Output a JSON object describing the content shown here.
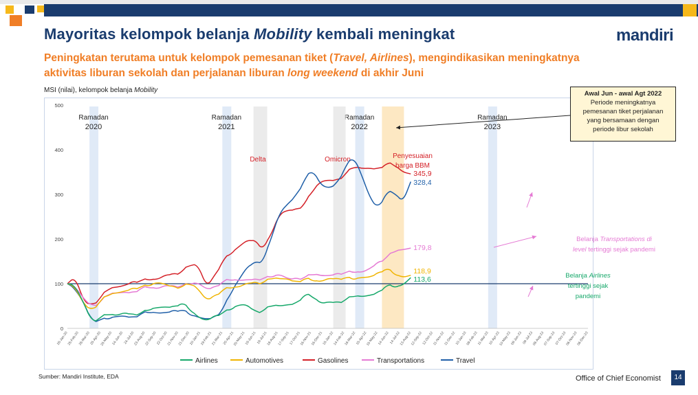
{
  "header": {
    "title_prefix": "Mayoritas kelompok belanja ",
    "title_em": "Mobility",
    "title_suffix": " kembali meningkat",
    "subtitle_a": "Peningkatan terutama untuk kelompok pemesanan tiket (",
    "subtitle_em1": "Travel, Airlines",
    "subtitle_b": "), mengindikasikan meningkatnya aktivitas liburan sekolah dan perjalanan liburan ",
    "subtitle_em2": "long weekend",
    "subtitle_c": " di akhir Juni",
    "logo": "mandiri"
  },
  "colors": {
    "navy": "#1a3c6e",
    "orange": "#f07e26",
    "airlines": "#16a86a",
    "automotives": "#f0b400",
    "gasolines": "#d42027",
    "transportations": "#e57ad4",
    "travel": "#1f5fa8"
  },
  "callout": {
    "title": "Awal Jun - awal Agt 2022",
    "lines": [
      "Periode meningkatnya",
      "pemesanan tiket perjalanan",
      "yang bersamaan dengan",
      "periode libur sekolah"
    ]
  },
  "footer": {
    "source": "Sumber: Mandiri Institute, EDA",
    "office": "Office of Chief Economist",
    "page": "14"
  },
  "chart_data": {
    "type": "line",
    "ylabel_prefix": "MSI (nilai), kelompok belanja ",
    "ylabel_em": "Mobility",
    "ylim": [
      0,
      500
    ],
    "yticks": [
      0,
      100,
      200,
      300,
      400,
      500
    ],
    "baseline": 100,
    "x_labels": [
      "26-Jan-20",
      "25-Feb-20",
      "26-Mar-20",
      "25-Apr-20",
      "25-May-20",
      "24-Jun-20",
      "24-Jul-20",
      "23-Aug-20",
      "22-Sep-20",
      "22-Oct-20",
      "21-Nov-20",
      "21-Dec-20",
      "20-Jan-21",
      "19-Feb-21",
      "21-Mar-21",
      "20-Apr-21",
      "20-May-21",
      "19-Jun-21",
      "19-Jul-21",
      "18-Aug-21",
      "17-Sep-21",
      "17-Oct-21",
      "16-Nov-21",
      "16-Dec-21",
      "15-Jan-22",
      "14-Feb-22",
      "16-Mar-22",
      "15-Apr-22",
      "15-May-22",
      "14-Jun-22",
      "14-Jul-22",
      "13-Aug-22",
      "12-Sep-22",
      "12-Oct-22",
      "11-Nov-22",
      "11-Dec-22",
      "10-Jan-23",
      "09-Feb-23",
      "11-Mar-23",
      "10-Apr-23",
      "10-May-23",
      "09-Jun-23",
      "09-Jul-23",
      "08-Aug-23",
      "07-Sep-23",
      "07-Oct-23",
      "06-Nov-23",
      "06-Dec-23"
    ],
    "ramadan_labels": [
      {
        "line1": "Ramadan",
        "line2": "2020"
      },
      {
        "line1": "Ramadan",
        "line2": "2021"
      },
      {
        "line1": "Ramadan",
        "line2": "2022"
      },
      {
        "line1": "Ramadan",
        "line2": "2023"
      }
    ],
    "event_labels": [
      "Delta",
      "Omicron",
      "Penyesuaian",
      "harga BBM"
    ],
    "annotations": {
      "transport_a": "Belanja ",
      "transport_em": "Transportations di",
      "transport_b_em": "level",
      "transport_b": " tertinggi sejak pandemi",
      "airlines_a": "Belanja ",
      "airlines_em": "Airlines",
      "airlines_b": "tertinggi sejak",
      "airlines_c": "pandemi"
    },
    "series": [
      {
        "name": "Airlines",
        "color": "#16a86a",
        "end_label": "113,6",
        "values": [
          100,
          92,
          58,
          20,
          22,
          30,
          30,
          33,
          32,
          35,
          42,
          45,
          48,
          52,
          55,
          38,
          26,
          20,
          28,
          35,
          42,
          50,
          52,
          40,
          42,
          48,
          50,
          55,
          55,
          75,
          70,
          58,
          58,
          60,
          65,
          68,
          70,
          75,
          85,
          95,
          90,
          98,
          113.6
        ]
      },
      {
        "name": "Automotives",
        "color": "#f0b400",
        "end_label": "118,9",
        "values": [
          100,
          88,
          55,
          44,
          58,
          72,
          80,
          86,
          90,
          93,
          95,
          100,
          98,
          96,
          95,
          97,
          88,
          65,
          72,
          85,
          90,
          95,
          100,
          105,
          104,
          108,
          110,
          112,
          108,
          110,
          105,
          106,
          110,
          112,
          115,
          110,
          112,
          115,
          128,
          132,
          118,
          115,
          118.9
        ]
      },
      {
        "name": "Gasolines",
        "color": "#d42027",
        "end_label": "345,9",
        "values": [
          100,
          110,
          60,
          55,
          70,
          85,
          92,
          98,
          104,
          106,
          108,
          112,
          118,
          124,
          128,
          138,
          140,
          95,
          122,
          150,
          165,
          185,
          195,
          198,
          178,
          215,
          255,
          265,
          270,
          275,
          305,
          330,
          335,
          332,
          345,
          362,
          355,
          358,
          360,
          372,
          362,
          350,
          345.9
        ]
      },
      {
        "name": "Transportations",
        "color": "#e57ad4",
        "end_label": "179,8",
        "values": [
          100,
          95,
          65,
          52,
          60,
          72,
          78,
          82,
          85,
          88,
          90,
          90,
          94,
          96,
          96,
          100,
          100,
          88,
          96,
          102,
          106,
          108,
          112,
          110,
          112,
          115,
          118,
          110,
          115,
          116,
          118,
          118,
          120,
          122,
          124,
          125,
          128,
          132,
          150,
          160,
          168,
          175,
          179.8
        ]
      },
      {
        "name": "Travel",
        "color": "#1f5fa8",
        "end_label": "328,4",
        "values": [
          100,
          88,
          55,
          18,
          20,
          22,
          25,
          28,
          28,
          30,
          33,
          35,
          38,
          40,
          42,
          30,
          22,
          20,
          28,
          45,
          75,
          110,
          140,
          148,
          150,
          205,
          262,
          278,
          300,
          335,
          350,
          320,
          315,
          330,
          360,
          382,
          345,
          290,
          270,
          305,
          305,
          280,
          328.4
        ]
      }
    ]
  }
}
